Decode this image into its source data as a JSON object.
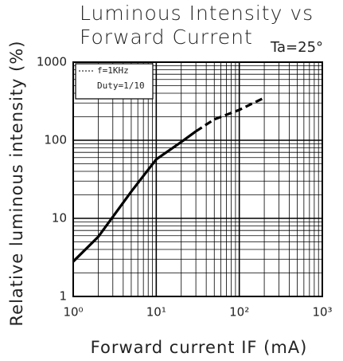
{
  "chart_data": {
    "type": "line",
    "title": "Luminous Intensity vs",
    "subtitle": "Forward Current",
    "annotations": [
      "Ta=25°",
      "f=1KHz",
      "Duty=1/10"
    ],
    "x_label": "Forward current IF (mA)",
    "y_label": "Relative luminous intensity (%)",
    "series": [
      {
        "color": "#000000",
        "dashed": false,
        "x": [
          1,
          2,
          5,
          10,
          20,
          30
        ],
        "values": [
          2.8,
          5.8,
          22,
          57,
          95,
          130
        ]
      },
      {
        "color": "#000000",
        "dashed": true,
        "x": [
          30,
          50,
          100,
          200
        ],
        "values": [
          130,
          185,
          245,
          350
        ]
      }
    ],
    "xlim": [
      1,
      1000
    ],
    "ylim": [
      1,
      1000
    ],
    "xticks": [
      {
        "value": 1,
        "label": "10⁰"
      },
      {
        "value": 10,
        "label": "10¹"
      },
      {
        "value": 100,
        "label": "10²"
      },
      {
        "value": 1000,
        "label": "10³"
      }
    ],
    "yticks": [
      1,
      10,
      100,
      1000
    ],
    "log_x": true,
    "log_y": true,
    "grid": true
  }
}
